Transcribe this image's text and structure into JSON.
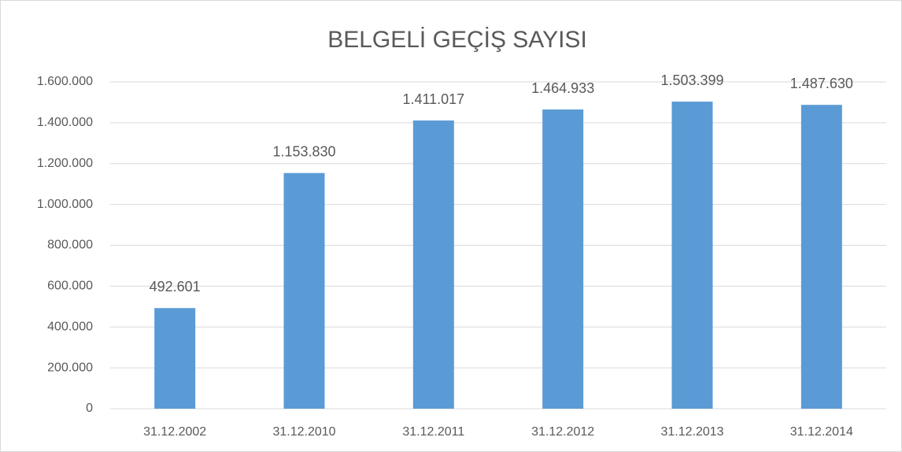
{
  "chart_data": {
    "type": "bar",
    "title": "BELGELİ GEÇİŞ SAYISI",
    "categories": [
      "31.12.2002",
      "31.12.2010",
      "31.12.2011",
      "31.12.2012",
      "31.12.2013",
      "31.12.2014"
    ],
    "values": [
      492601,
      1153830,
      1411017,
      1464933,
      1503399,
      1487630
    ],
    "value_labels": [
      "492.601",
      "1.153.830",
      "1.411.017",
      "1.464.933",
      "1.503.399",
      "1.487.630"
    ],
    "color": "#5b9bd5",
    "ylim": [
      0,
      1600000
    ],
    "yticks": [
      0,
      {
        "value": 200000,
        "label": "200.000"
      },
      {
        "value": 400000,
        "label": "400.000"
      },
      {
        "value": 600000,
        "label": "600.000"
      },
      {
        "value": 800000,
        "label": "800.000"
      },
      {
        "value": 1000000,
        "label": "1.000.000"
      },
      {
        "value": 1200000,
        "label": "1.200.000"
      },
      {
        "value": 1400000,
        "label": "1.400.000"
      },
      {
        "value": 1600000,
        "label": "1.600.000"
      }
    ],
    "grid": true
  }
}
